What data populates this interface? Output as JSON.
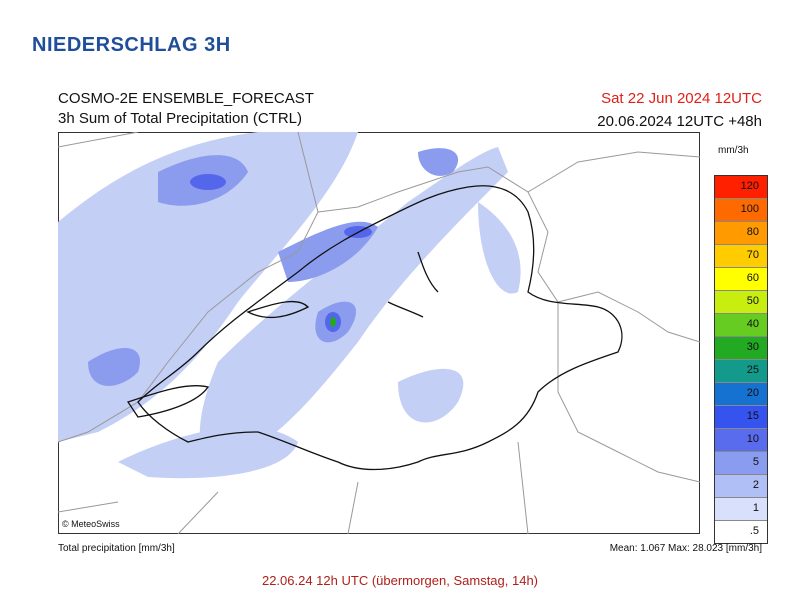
{
  "header": {
    "title": "NIEDERSCHLAG 3H"
  },
  "panel": {
    "title": "COSMO-2E ENSEMBLE_FORECAST",
    "subtitle": "3h Sum of Total Precipitation (CTRL)",
    "valid_time": "Sat 22 Jun 2024 12UTC",
    "run": "20.06.2024 12UTC +48h",
    "copyright": "© MeteoSwiss",
    "footer_left": "Total precipitation [mm/3h]",
    "footer_right": "Mean:  1.067 Max: 28.023 [mm/3h]"
  },
  "legend": {
    "unit": "mm/3h",
    "items": [
      {
        "label": "120",
        "color": "#ff2000"
      },
      {
        "label": "100",
        "color": "#ff6a00"
      },
      {
        "label": "80",
        "color": "#ff9a00"
      },
      {
        "label": "70",
        "color": "#ffcc00"
      },
      {
        "label": "60",
        "color": "#ffff00"
      },
      {
        "label": "50",
        "color": "#c8ee10"
      },
      {
        "label": "40",
        "color": "#66cc22"
      },
      {
        "label": "30",
        "color": "#22aa22"
      },
      {
        "label": "25",
        "color": "#139a8a"
      },
      {
        "label": "20",
        "color": "#1672d0"
      },
      {
        "label": "15",
        "color": "#3553ee"
      },
      {
        "label": "10",
        "color": "#5a6cee"
      },
      {
        "label": "5",
        "color": "#8a9cef"
      },
      {
        "label": "2",
        "color": "#b0bff5"
      },
      {
        "label": "1",
        "color": "#d8e0fb"
      },
      {
        "label": ".5",
        "color": "#ffffff"
      }
    ]
  },
  "caption": "22.06.24 12h UTC (übermorgen, Samstag, 14h)"
}
